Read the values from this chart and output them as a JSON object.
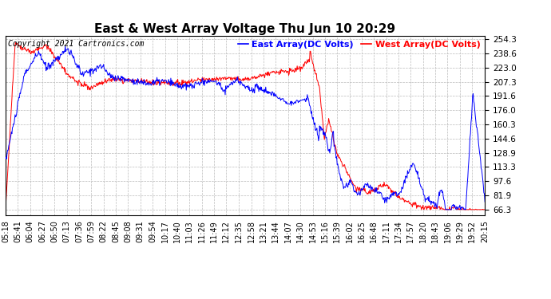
{
  "title": "East & West Array Voltage Thu Jun 10 20:29",
  "copyright": "Copyright 2021 Cartronics.com",
  "legend_east": "East Array(DC Volts)",
  "legend_west": "West Array(DC Volts)",
  "east_color": "#0000FF",
  "west_color": "#FF0000",
  "bg_color": "#FFFFFF",
  "plot_bg_color": "#FFFFFF",
  "grid_color": "#BBBBBB",
  "yticks": [
    66.3,
    81.9,
    97.6,
    113.3,
    128.9,
    144.6,
    160.3,
    176.0,
    191.6,
    207.3,
    223.0,
    238.6,
    254.3
  ],
  "ylim": [
    60.0,
    258.0
  ],
  "x_labels": [
    "05:18",
    "05:41",
    "06:04",
    "06:27",
    "06:50",
    "07:13",
    "07:36",
    "07:59",
    "08:22",
    "08:45",
    "09:08",
    "09:31",
    "09:54",
    "10:17",
    "10:40",
    "11:03",
    "11:26",
    "11:49",
    "12:12",
    "12:35",
    "12:58",
    "13:21",
    "13:44",
    "14:07",
    "14:30",
    "14:53",
    "15:16",
    "15:39",
    "16:02",
    "16:25",
    "16:48",
    "17:11",
    "17:34",
    "17:57",
    "18:20",
    "18:43",
    "19:06",
    "19:29",
    "19:52",
    "20:15"
  ],
  "title_fontsize": 11,
  "tick_fontsize": 7.5,
  "copyright_fontsize": 7
}
